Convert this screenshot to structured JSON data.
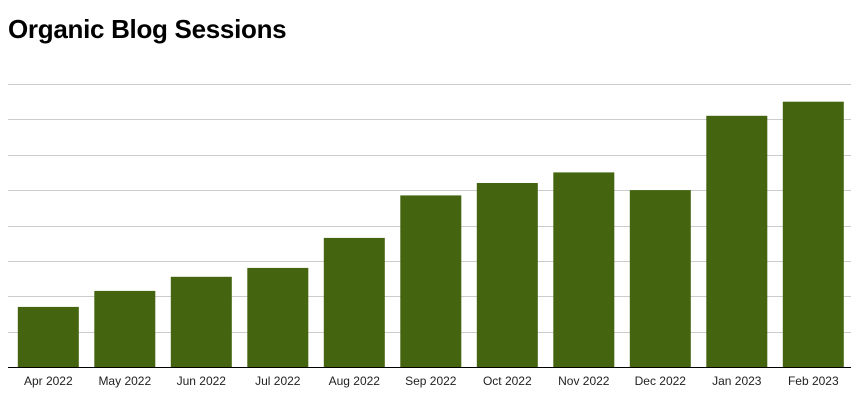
{
  "chart_data": {
    "type": "bar",
    "title": "Organic Blog Sessions",
    "categories": [
      "Apr 2022",
      "May 2022",
      "Jun 2022",
      "Jul 2022",
      "Aug 2022",
      "Sep 2022",
      "Oct 2022",
      "Nov 2022",
      "Dec 2022",
      "Jan 2023",
      "Feb 2023"
    ],
    "values": [
      1.7,
      2.15,
      2.55,
      2.8,
      3.65,
      4.85,
      5.2,
      5.5,
      5.0,
      7.1,
      7.5
    ],
    "ylim": [
      0,
      8
    ],
    "y_ticks": [
      0,
      1,
      2,
      3,
      4,
      5,
      6,
      7,
      8
    ],
    "y_tick_labels_shown": false,
    "grid": true,
    "legend": "none",
    "bar_color": "#44640f",
    "grid_color": "#cccccc",
    "axis_color": "#000000"
  }
}
